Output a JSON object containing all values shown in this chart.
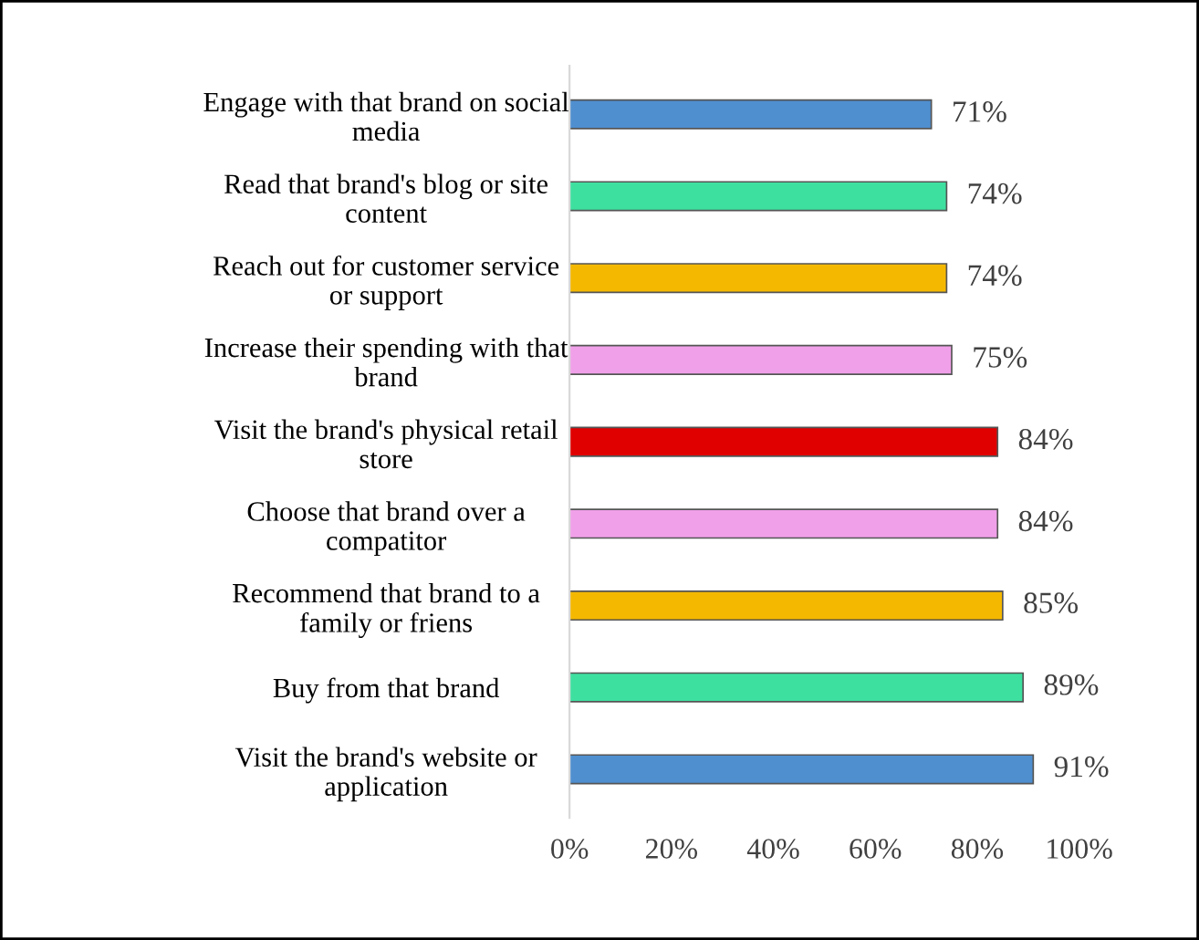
{
  "chart_data": {
    "type": "bar",
    "orientation": "horizontal",
    "categories": [
      "Engage with that brand on social\nmedia",
      "Read that brand's blog or site\ncontent",
      "Reach out for customer service\nor support",
      "Increase their spending with that\nbrand",
      "Visit the brand's physical retail\nstore",
      "Choose that brand over a\ncompatitor",
      "Recommend that brand to a\nfamily or friens",
      "Buy from that brand",
      "Visit the brand's website or\napplication"
    ],
    "values": [
      71,
      74,
      74,
      75,
      84,
      84,
      85,
      89,
      91
    ],
    "colors": [
      "#4f8fd0",
      "#3ee0a0",
      "#f5b800",
      "#f0a0e8",
      "#e00000",
      "#f0a0e8",
      "#f5b800",
      "#3ee0a0",
      "#4f8fd0"
    ],
    "value_labels": [
      "71%",
      "74%",
      "74%",
      "75%",
      "84%",
      "84%",
      "85%",
      "89%",
      "91%"
    ],
    "xlim": [
      0,
      100
    ],
    "xticks": [
      {
        "value": 0,
        "label": "0%"
      },
      {
        "value": 20,
        "label": "20%"
      },
      {
        "value": 40,
        "label": "40%"
      },
      {
        "value": 60,
        "label": "60%"
      },
      {
        "value": 80,
        "label": "80%"
      },
      {
        "value": 100,
        "label": "100%"
      }
    ],
    "grid": false,
    "legend": false
  }
}
